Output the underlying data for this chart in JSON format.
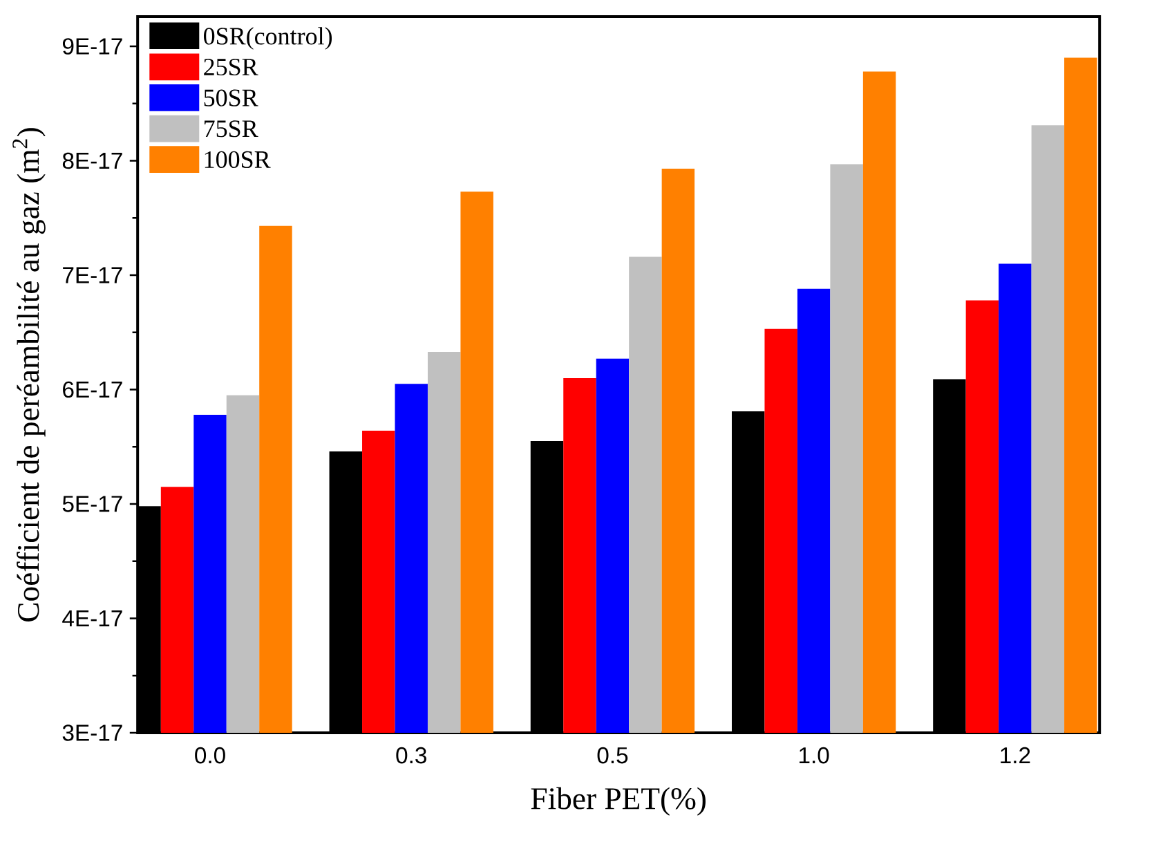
{
  "chart_data": {
    "type": "bar",
    "xlabel": "Fiber PET(%)",
    "ylabel": "Coéfficient de peréambilité au gaz (m$^{2}$)",
    "categories": [
      "0.0",
      "0.3",
      "0.5",
      "1.0",
      "1.2"
    ],
    "series": [
      {
        "name": "0SR(control)",
        "color": "#000000",
        "values": [
          4.98e-17,
          5.46e-17,
          5.55e-17,
          5.81e-17,
          6.09e-17
        ]
      },
      {
        "name": "25SR",
        "color": "#ff0000",
        "values": [
          5.15e-17,
          5.64e-17,
          6.1e-17,
          6.53e-17,
          6.78e-17
        ]
      },
      {
        "name": "50SR",
        "color": "#0000ff",
        "values": [
          5.78e-17,
          6.05e-17,
          6.27e-17,
          6.88e-17,
          7.1e-17
        ]
      },
      {
        "name": "75SR",
        "color": "#c0c0c0",
        "values": [
          5.95e-17,
          6.33e-17,
          7.16e-17,
          7.97e-17,
          8.31e-17
        ]
      },
      {
        "name": "100SR",
        "color": "#ff8000",
        "values": [
          7.43e-17,
          7.73e-17,
          7.93e-17,
          8.78e-17,
          8.9e-17
        ]
      }
    ],
    "ylim": [
      3e-17,
      9.26e-17
    ],
    "yticks": [
      {
        "value": 3e-17,
        "label": "3E-17"
      },
      {
        "value": 4e-17,
        "label": "4E-17"
      },
      {
        "value": 5e-17,
        "label": "5E-17"
      },
      {
        "value": 6e-17,
        "label": "6E-17"
      },
      {
        "value": 7e-17,
        "label": "7E-17"
      },
      {
        "value": 8e-17,
        "label": "8E-17"
      },
      {
        "value": 9e-17,
        "label": "9E-17"
      }
    ],
    "grid": false,
    "legend": "top left"
  }
}
